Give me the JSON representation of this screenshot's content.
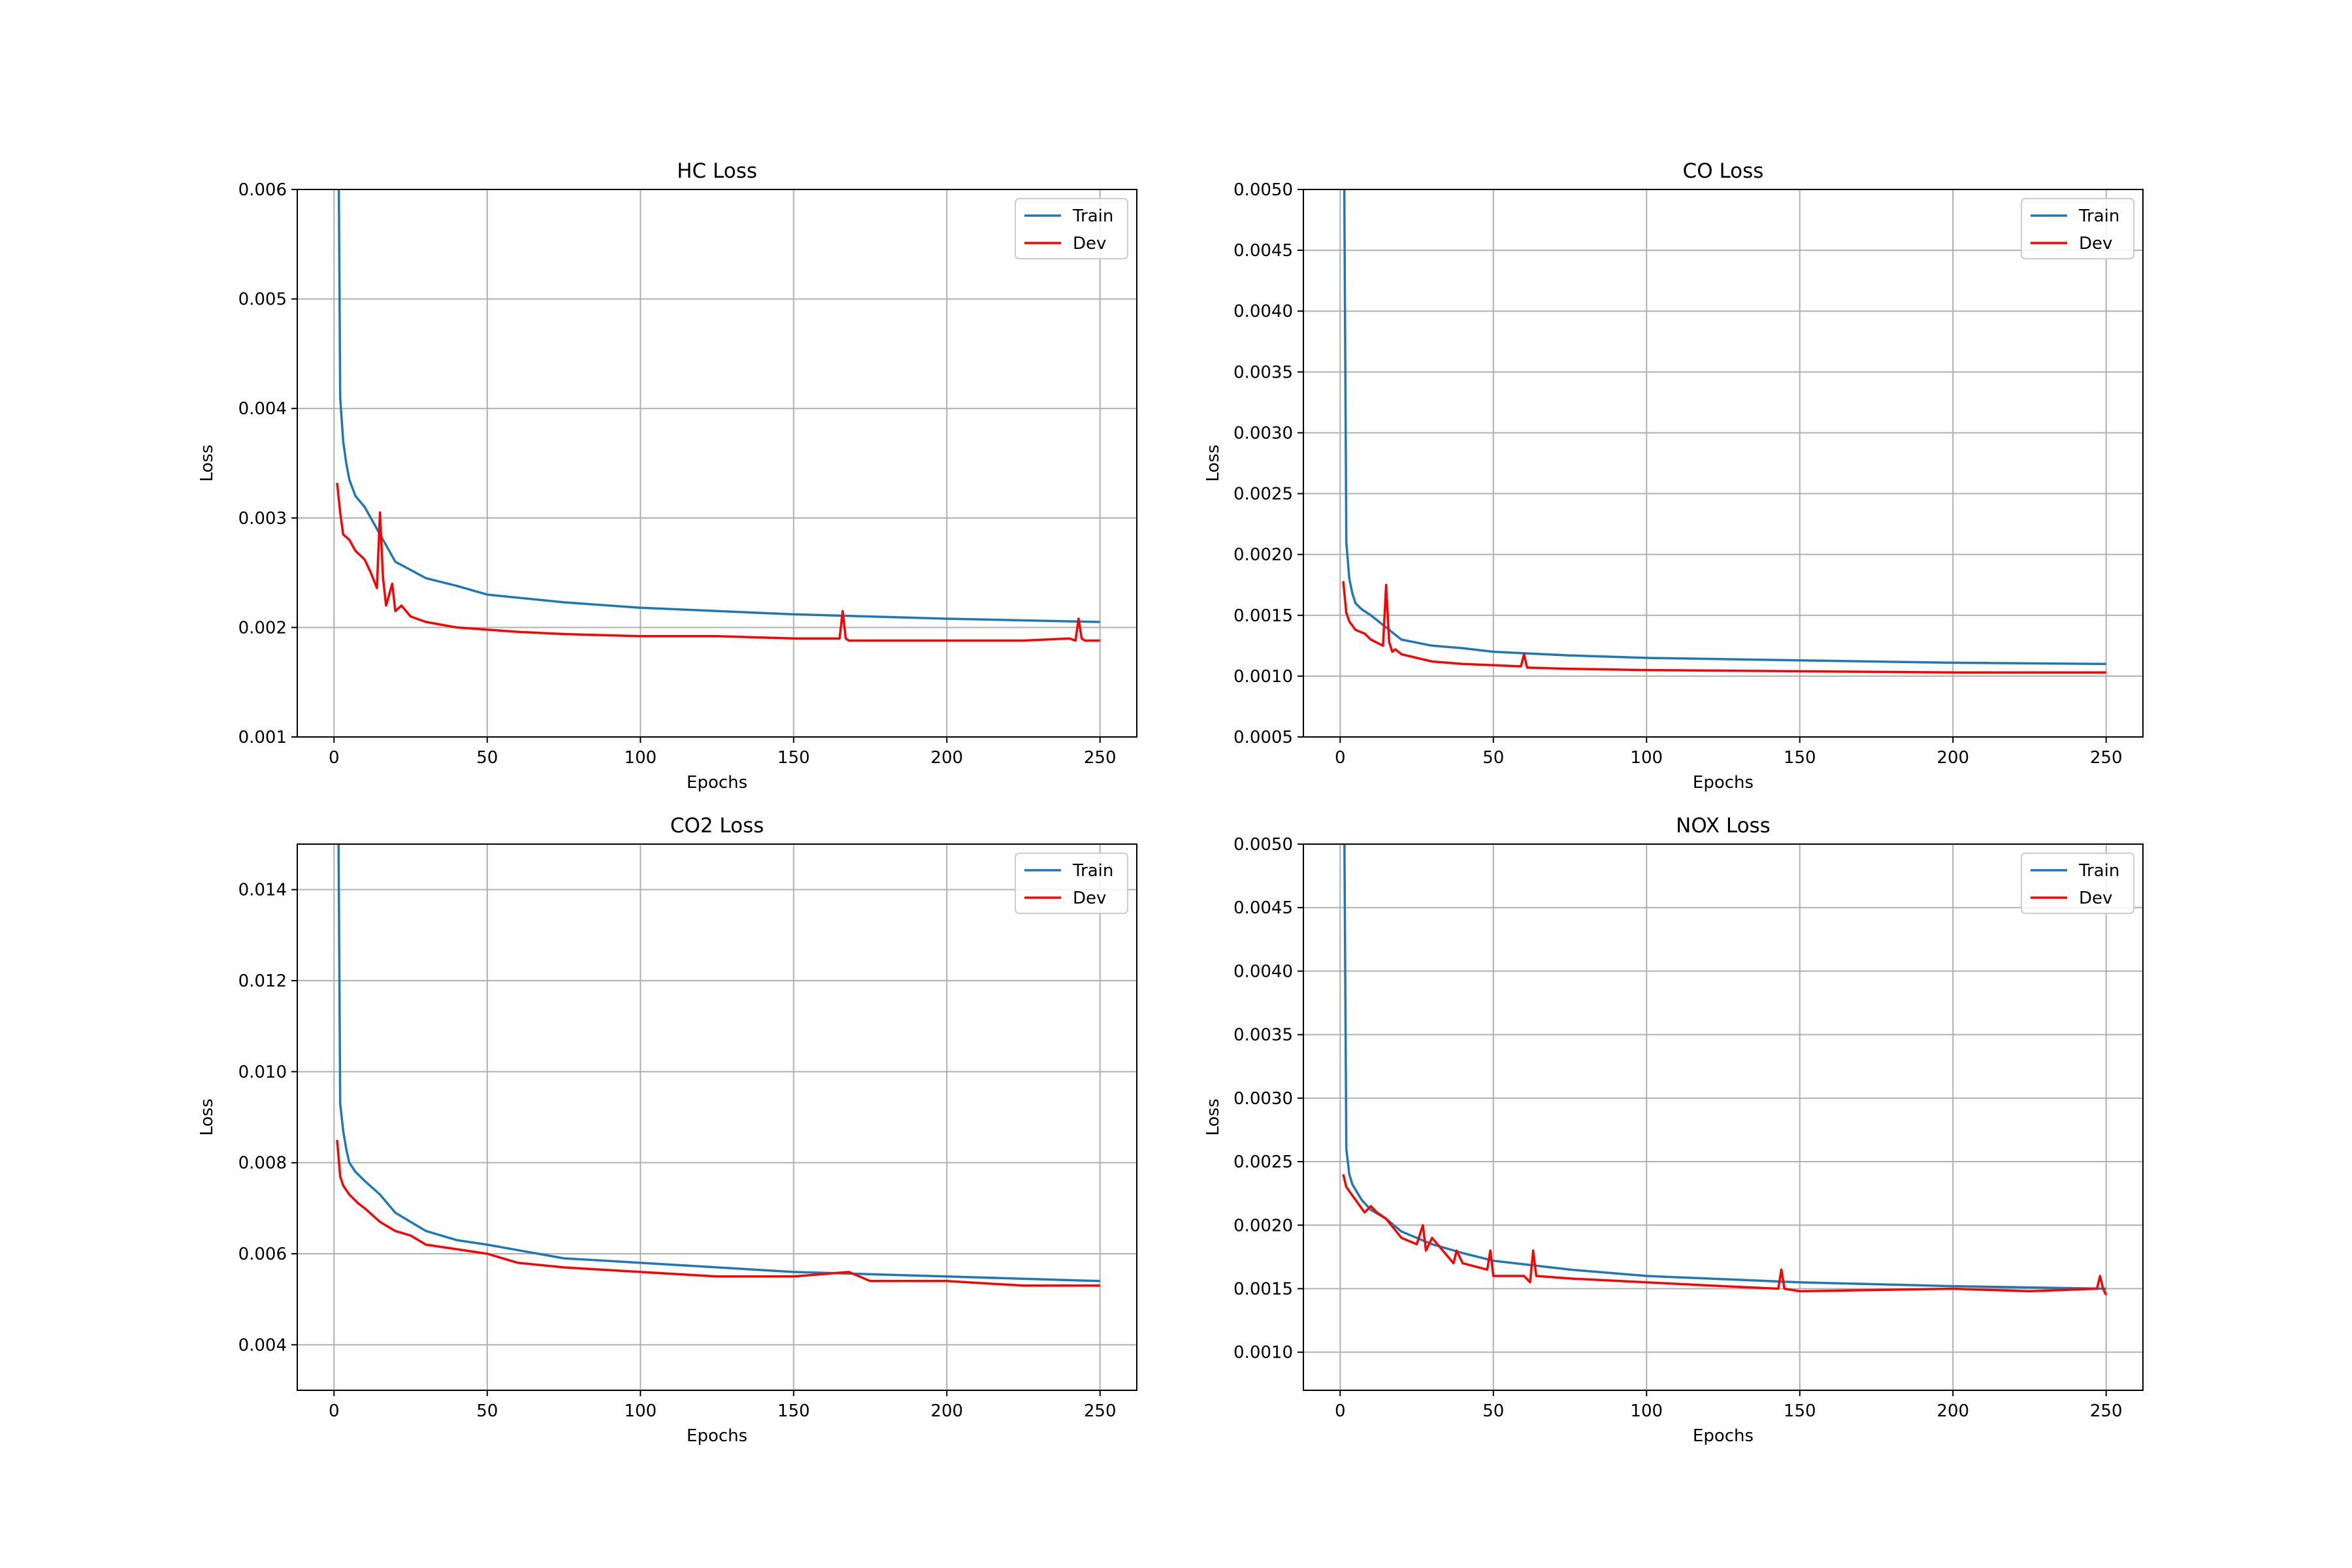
{
  "figure": {
    "colors": {
      "train": "#1f77b4",
      "dev": "#ff0000",
      "grid": "#b0b0b0",
      "axes": "#000000"
    }
  },
  "legend": {
    "train": "Train",
    "dev": "Dev",
    "placement": "top-right"
  },
  "chart_data": [
    {
      "type": "line",
      "title": "HC Loss",
      "xlabel": "Epochs",
      "ylabel": "Loss",
      "xlim": [
        -12,
        262
      ],
      "ylim": [
        0.001,
        0.006
      ],
      "xticks": [
        0,
        50,
        100,
        150,
        200,
        250
      ],
      "xtick_labels": [
        "0",
        "50",
        "100",
        "150",
        "200",
        "250"
      ],
      "yticks": [
        0.001,
        0.002,
        0.003,
        0.004,
        0.005,
        0.006
      ],
      "ytick_labels": [
        "0.001",
        "0.002",
        "0.003",
        "0.004",
        "0.005",
        "0.006"
      ],
      "grid": true,
      "series": [
        {
          "name": "Train",
          "color": "#1f77b4",
          "x": [
            1,
            2,
            3,
            4,
            5,
            7,
            10,
            15,
            20,
            30,
            40,
            50,
            75,
            100,
            150,
            200,
            250
          ],
          "y": [
            0.0085,
            0.0041,
            0.0037,
            0.0035,
            0.00335,
            0.0032,
            0.0031,
            0.00285,
            0.0026,
            0.00245,
            0.00238,
            0.0023,
            0.00223,
            0.00218,
            0.00212,
            0.00208,
            0.00205
          ]
        },
        {
          "name": "Dev",
          "color": "#ff0000",
          "x": [
            1,
            2,
            3,
            5,
            7,
            10,
            12,
            14,
            15,
            16,
            17,
            19,
            20,
            22,
            25,
            30,
            40,
            50,
            60,
            75,
            100,
            125,
            150,
            165,
            166,
            167,
            168,
            169,
            170,
            200,
            225,
            240,
            242,
            243,
            244,
            245,
            250
          ],
          "y": [
            0.00332,
            0.00305,
            0.00285,
            0.0028,
            0.0027,
            0.00262,
            0.0025,
            0.00236,
            0.00305,
            0.00245,
            0.0022,
            0.0024,
            0.00215,
            0.0022,
            0.0021,
            0.00205,
            0.002,
            0.00198,
            0.00196,
            0.00194,
            0.00192,
            0.00192,
            0.0019,
            0.0019,
            0.00215,
            0.0019,
            0.00188,
            0.00188,
            0.00188,
            0.00188,
            0.00188,
            0.0019,
            0.00188,
            0.00208,
            0.0019,
            0.00188,
            0.00188
          ]
        }
      ]
    },
    {
      "type": "line",
      "title": "CO Loss",
      "xlabel": "Epochs",
      "ylabel": "Loss",
      "xlim": [
        -12,
        262
      ],
      "ylim": [
        0.0005,
        0.005
      ],
      "xticks": [
        0,
        50,
        100,
        150,
        200,
        250
      ],
      "xtick_labels": [
        "0",
        "50",
        "100",
        "150",
        "200",
        "250"
      ],
      "yticks": [
        0.0005,
        0.001,
        0.0015,
        0.002,
        0.0025,
        0.003,
        0.0035,
        0.004,
        0.0045,
        0.005
      ],
      "ytick_labels": [
        "0.0005",
        "0.0010",
        "0.0015",
        "0.0020",
        "0.0025",
        "0.0030",
        "0.0035",
        "0.0040",
        "0.0045",
        "0.0050"
      ],
      "grid": true,
      "series": [
        {
          "name": "Train",
          "color": "#1f77b4",
          "x": [
            1,
            2,
            3,
            4,
            5,
            7,
            10,
            15,
            20,
            30,
            40,
            50,
            75,
            100,
            150,
            200,
            250
          ],
          "y": [
            0.0065,
            0.0021,
            0.0018,
            0.00168,
            0.0016,
            0.00155,
            0.0015,
            0.0014,
            0.0013,
            0.00125,
            0.00123,
            0.0012,
            0.00117,
            0.00115,
            0.00113,
            0.00111,
            0.0011
          ]
        },
        {
          "name": "Dev",
          "color": "#ff0000",
          "x": [
            1,
            2,
            3,
            5,
            8,
            10,
            14,
            15,
            16,
            17,
            18,
            20,
            25,
            30,
            40,
            50,
            59,
            60,
            61,
            75,
            100,
            150,
            200,
            250
          ],
          "y": [
            0.00178,
            0.00152,
            0.00145,
            0.00138,
            0.00135,
            0.0013,
            0.00125,
            0.00175,
            0.00128,
            0.0012,
            0.00122,
            0.00118,
            0.00115,
            0.00112,
            0.0011,
            0.00109,
            0.00108,
            0.00118,
            0.00107,
            0.00106,
            0.00105,
            0.00104,
            0.00103,
            0.00103
          ]
        }
      ]
    },
    {
      "type": "line",
      "title": "CO2 Loss",
      "xlabel": "Epochs",
      "ylabel": "Loss",
      "xlim": [
        -12,
        262
      ],
      "ylim": [
        0.003,
        0.015
      ],
      "xticks": [
        0,
        50,
        100,
        150,
        200,
        250
      ],
      "xtick_labels": [
        "0",
        "50",
        "100",
        "150",
        "200",
        "250"
      ],
      "yticks": [
        0.004,
        0.006,
        0.008,
        0.01,
        0.012,
        0.014
      ],
      "ytick_labels": [
        "0.004",
        "0.006",
        "0.008",
        "0.010",
        "0.012",
        "0.014"
      ],
      "grid": true,
      "series": [
        {
          "name": "Train",
          "color": "#1f77b4",
          "x": [
            1,
            2,
            3,
            4,
            5,
            7,
            10,
            15,
            20,
            30,
            40,
            50,
            75,
            100,
            150,
            200,
            250
          ],
          "y": [
            0.02,
            0.0093,
            0.0087,
            0.0083,
            0.008,
            0.0078,
            0.0076,
            0.0073,
            0.0069,
            0.0065,
            0.0063,
            0.0062,
            0.0059,
            0.0058,
            0.0056,
            0.0055,
            0.0054
          ]
        },
        {
          "name": "Dev",
          "color": "#ff0000",
          "x": [
            1,
            2,
            3,
            5,
            8,
            10,
            15,
            20,
            25,
            30,
            40,
            50,
            60,
            75,
            100,
            125,
            150,
            168,
            175,
            200,
            225,
            250
          ],
          "y": [
            0.0085,
            0.0077,
            0.0075,
            0.0073,
            0.0071,
            0.007,
            0.0067,
            0.0065,
            0.0064,
            0.0062,
            0.0061,
            0.006,
            0.0058,
            0.0057,
            0.0056,
            0.0055,
            0.0055,
            0.0056,
            0.0054,
            0.0054,
            0.0053,
            0.0053
          ]
        }
      ]
    },
    {
      "type": "line",
      "title": "NOX Loss",
      "xlabel": "Epochs",
      "ylabel": "Loss",
      "xlim": [
        -12,
        262
      ],
      "ylim": [
        0.0007,
        0.005
      ],
      "xticks": [
        0,
        50,
        100,
        150,
        200,
        250
      ],
      "xtick_labels": [
        "0",
        "50",
        "100",
        "150",
        "200",
        "250"
      ],
      "yticks": [
        0.001,
        0.0015,
        0.002,
        0.0025,
        0.003,
        0.0035,
        0.004,
        0.0045,
        0.005
      ],
      "ytick_labels": [
        "0.0010",
        "0.0015",
        "0.0020",
        "0.0025",
        "0.0030",
        "0.0035",
        "0.0040",
        "0.0045",
        "0.0050"
      ],
      "grid": true,
      "series": [
        {
          "name": "Train",
          "color": "#1f77b4",
          "x": [
            1,
            2,
            3,
            4,
            5,
            7,
            10,
            15,
            20,
            30,
            40,
            50,
            75,
            100,
            150,
            200,
            250
          ],
          "y": [
            0.0065,
            0.0026,
            0.0024,
            0.00232,
            0.00228,
            0.0022,
            0.00212,
            0.00205,
            0.00195,
            0.00185,
            0.00178,
            0.00172,
            0.00165,
            0.0016,
            0.00155,
            0.00152,
            0.0015
          ]
        },
        {
          "name": "Dev",
          "color": "#ff0000",
          "x": [
            1,
            2,
            5,
            8,
            10,
            12,
            15,
            20,
            25,
            27,
            28,
            30,
            37,
            38,
            40,
            48,
            49,
            50,
            60,
            62,
            63,
            64,
            75,
            100,
            125,
            143,
            144,
            145,
            150,
            200,
            225,
            247,
            248,
            249,
            250
          ],
          "y": [
            0.0024,
            0.0023,
            0.0022,
            0.0021,
            0.00215,
            0.0021,
            0.00205,
            0.0019,
            0.00185,
            0.002,
            0.0018,
            0.0019,
            0.0017,
            0.0018,
            0.0017,
            0.00165,
            0.0018,
            0.0016,
            0.0016,
            0.00155,
            0.0018,
            0.0016,
            0.00158,
            0.00155,
            0.00152,
            0.0015,
            0.00165,
            0.0015,
            0.00148,
            0.0015,
            0.00148,
            0.0015,
            0.0016,
            0.0015,
            0.00145
          ]
        }
      ]
    }
  ]
}
